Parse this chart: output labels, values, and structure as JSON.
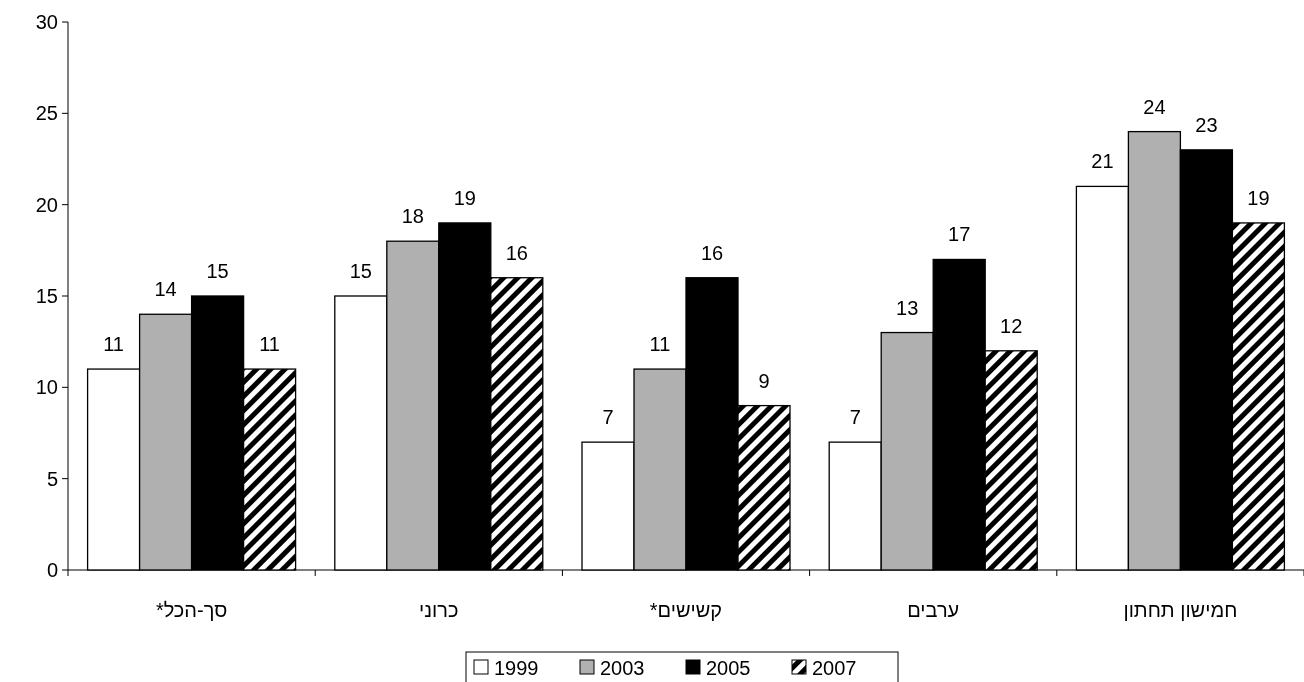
{
  "chart_data": {
    "type": "bar",
    "categories": [
      "סך-הכל*",
      "כרוני",
      "קשישים*",
      "ערבים",
      "חמישון תחתון"
    ],
    "series": [
      {
        "name": "1999",
        "color": "#ffffff",
        "values": [
          11,
          15,
          7,
          7,
          21
        ]
      },
      {
        "name": "2003",
        "color": "#b0b0b0",
        "values": [
          14,
          18,
          11,
          13,
          24
        ]
      },
      {
        "name": "2005",
        "color": "#000000",
        "values": [
          15,
          19,
          16,
          17,
          23
        ]
      },
      {
        "name": "2007",
        "color": "#000000",
        "values": [
          11,
          16,
          9,
          12,
          19
        ]
      }
    ],
    "ylim": [
      0,
      30
    ],
    "yticks": [
      0,
      5,
      10,
      15,
      20,
      25,
      30
    ],
    "data_labels": true,
    "legend": "bottom",
    "grid": false
  }
}
